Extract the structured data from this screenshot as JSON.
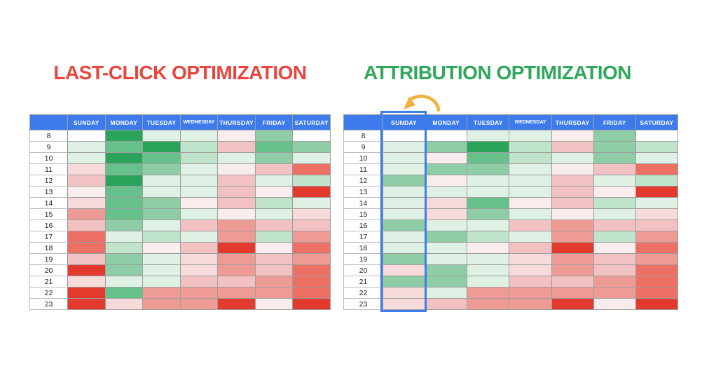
{
  "page": {
    "background": "#ffffff"
  },
  "titles": {
    "left": {
      "text": "LAST-CLICK OPTIMIZATION",
      "color": "#e8463e"
    },
    "right": {
      "text": "ATTRIBUTION OPTIMIZATION",
      "color": "#2fa75c"
    }
  },
  "header_color": "#3d7bed",
  "highlight": {
    "table": "attribution",
    "column": "SUNDAY",
    "border_color": "#3d7ded"
  },
  "arrow_icon": {
    "meaning": "curved-arrow-pointing-to-sunday-column",
    "color": "#f1b13d"
  },
  "palette": {
    "w": "#ffffff",
    "g1": "#dff0e5",
    "g2": "#bfe3cb",
    "g3": "#8ecda6",
    "g4": "#66c18b",
    "g5": "#2aa45b",
    "r1": "#f8edec",
    "r2": "#f7dbdb",
    "r3": "#f2c2c2",
    "r4": "#ef9b95",
    "r5": "#ec7164",
    "r6": "#e23a2c"
  },
  "chart_data": [
    {
      "id": "last-click",
      "type": "heatmap",
      "title": "LAST-CLICK OPTIMIZATION",
      "value_encoding": "cell color token: g5=best(green) .. w=neutral .. r6=worst(red)",
      "columns": [
        "SUNDAY",
        "MONDAY",
        "TUESDAY",
        "WEDNESDAY",
        "THURSDAY",
        "FRIDAY",
        "SATURDAY"
      ],
      "rows": [
        "8",
        "9",
        "10",
        "11",
        "12",
        "13",
        "14",
        "15",
        "16",
        "17",
        "18",
        "19",
        "20",
        "21",
        "22",
        "23"
      ],
      "cells": [
        [
          "w",
          "g5",
          "g1",
          "g1",
          "r1",
          "g3",
          "w"
        ],
        [
          "g1",
          "g4",
          "g5",
          "g2",
          "r3",
          "g4",
          "g3"
        ],
        [
          "g1",
          "g5",
          "g4",
          "g2",
          "g1",
          "g3",
          "g1"
        ],
        [
          "r2",
          "g4",
          "g3",
          "g1",
          "r1",
          "r3",
          "r5"
        ],
        [
          "r3",
          "g5",
          "g1",
          "g1",
          "r3",
          "g1",
          "g2"
        ],
        [
          "r1",
          "g4",
          "g1",
          "g1",
          "r3",
          "r1",
          "r6"
        ],
        [
          "r2",
          "g4",
          "g3",
          "r1",
          "r3",
          "g2",
          "g1"
        ],
        [
          "r4",
          "g4",
          "g3",
          "g1",
          "r1",
          "g1",
          "r2"
        ],
        [
          "r3",
          "g3",
          "g1",
          "r3",
          "r4",
          "r3",
          "r3"
        ],
        [
          "r5",
          "g1",
          "g2",
          "g1",
          "r4",
          "g2",
          "r4"
        ],
        [
          "r5",
          "g2",
          "r1",
          "r3",
          "r6",
          "r1",
          "r5"
        ],
        [
          "r3",
          "g3",
          "g1",
          "r2",
          "r4",
          "r3",
          "r4"
        ],
        [
          "r6",
          "g3",
          "g1",
          "r2",
          "r4",
          "r3",
          "r5"
        ],
        [
          "r2",
          "g1",
          "g1",
          "r3",
          "r3",
          "r4",
          "r5"
        ],
        [
          "r6",
          "g4",
          "r4",
          "r4",
          "r4",
          "r4",
          "r5"
        ],
        [
          "r6",
          "r2",
          "r4",
          "r4",
          "r6",
          "r1",
          "r6"
        ]
      ]
    },
    {
      "id": "attribution",
      "type": "heatmap",
      "title": "ATTRIBUTION OPTIMIZATION",
      "value_encoding": "cell color token: g5=best(green) .. w=neutral .. r6=worst(red)",
      "columns": [
        "SUNDAY",
        "MONDAY",
        "TUESDAY",
        "WEDNESDAY",
        "THURSDAY",
        "FRIDAY",
        "SATURDAY"
      ],
      "rows": [
        "8",
        "9",
        "10",
        "11",
        "12",
        "13",
        "14",
        "15",
        "16",
        "17",
        "18",
        "19",
        "20",
        "21",
        "22",
        "23"
      ],
      "cells": [
        [
          "w",
          "w",
          "g1",
          "g1",
          "r1",
          "g3",
          "w"
        ],
        [
          "g1",
          "g3",
          "g5",
          "g2",
          "r3",
          "g3",
          "g2"
        ],
        [
          "g1",
          "r1",
          "g4",
          "g2",
          "g1",
          "g3",
          "g1"
        ],
        [
          "g1",
          "g3",
          "g3",
          "g1",
          "r1",
          "r3",
          "r5"
        ],
        [
          "g3",
          "r1",
          "g1",
          "g1",
          "r3",
          "g1",
          "g2"
        ],
        [
          "g1",
          "g1",
          "g1",
          "g1",
          "r3",
          "r1",
          "r6"
        ],
        [
          "g1",
          "r2",
          "g4",
          "r1",
          "r3",
          "g2",
          "g1"
        ],
        [
          "g1",
          "r2",
          "g3",
          "g1",
          "r1",
          "g1",
          "r2"
        ],
        [
          "g3",
          "g1",
          "g1",
          "r3",
          "r4",
          "r3",
          "r3"
        ],
        [
          "g1",
          "g3",
          "g2",
          "g1",
          "r4",
          "g2",
          "r4"
        ],
        [
          "g1",
          "g1",
          "r1",
          "r3",
          "r6",
          "r1",
          "r5"
        ],
        [
          "g3",
          "g1",
          "g1",
          "r2",
          "r4",
          "r3",
          "r4"
        ],
        [
          "r2",
          "g3",
          "g1",
          "r2",
          "r4",
          "r3",
          "r5"
        ],
        [
          "g3",
          "g3",
          "g1",
          "r3",
          "r3",
          "r4",
          "r5"
        ],
        [
          "r2",
          "g1",
          "r4",
          "r4",
          "r4",
          "r4",
          "r5"
        ],
        [
          "r2",
          "r3",
          "r4",
          "r4",
          "r6",
          "r1",
          "r6"
        ]
      ]
    }
  ]
}
